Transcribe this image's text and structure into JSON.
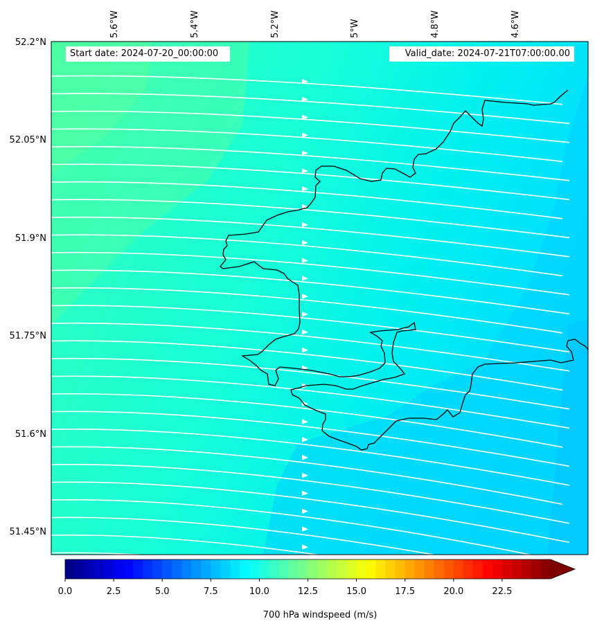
{
  "map": {
    "start_date_text": "Start date: 2024-07-20_00:00:00",
    "valid_date_text": "Valid_date: 2024-07-21T07:00:00.00",
    "lon_ticks": [
      "5.6°W",
      "5.4°W",
      "5.2°W",
      "5°W",
      "4.8°W",
      "4.6°W"
    ],
    "lat_ticks": [
      "52.2°N",
      "52.05°N",
      "51.9°N",
      "51.75°N",
      "51.6°N",
      "51.45°N"
    ],
    "colorbar": {
      "label": "700 hPa windspeed (m/s)",
      "ticks": [
        "0.0",
        "2.5",
        "5.0",
        "7.5",
        "10.0",
        "12.5",
        "15.0",
        "17.5",
        "20.0",
        "22.5"
      ],
      "min": 0,
      "max": 25,
      "colormap": "jet",
      "extend": "max"
    },
    "field_colors": {
      "strong": "#4dffa6",
      "mid": "#19ffd6",
      "weak": "#00e5ff",
      "weakest": "#00c8ff",
      "streamlines": "#ffffff",
      "coastline": "#000000"
    }
  }
}
